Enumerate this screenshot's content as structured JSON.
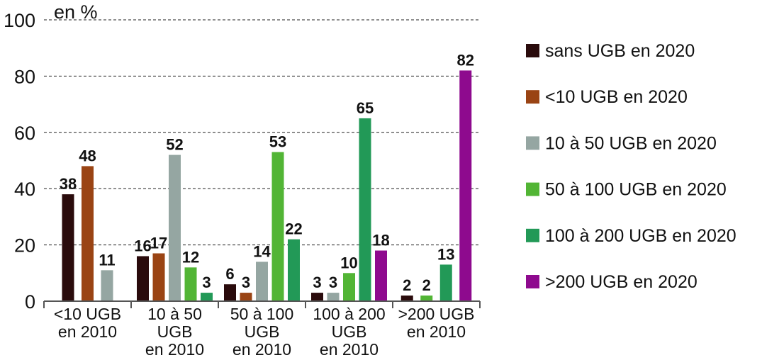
{
  "chart_data": {
    "type": "bar",
    "unit_label": "en %",
    "ylim": [
      0,
      100
    ],
    "yticks": [
      0,
      20,
      40,
      60,
      80,
      100
    ],
    "grid": true,
    "legend_position": "right",
    "categories": [
      [
        "<10 UGB",
        "en 2010"
      ],
      [
        "10 à 50",
        "UGB",
        "en 2010"
      ],
      [
        "50 à 100",
        "UGB",
        "en 2010"
      ],
      [
        "100 à 200",
        "UGB",
        "en 2010"
      ],
      [
        ">200 UGB",
        "en 2010"
      ]
    ],
    "series": [
      {
        "name": "sans UGB en 2020",
        "color": "#2a0b0c",
        "values": [
          38,
          16,
          6,
          3,
          2
        ]
      },
      {
        "name": "<10 UGB en 2020",
        "color": "#9a4414",
        "values": [
          48,
          17,
          3,
          null,
          null
        ]
      },
      {
        "name": "10 à 50 UGB en 2020",
        "color": "#95a6a2",
        "values": [
          11,
          52,
          14,
          3,
          null
        ]
      },
      {
        "name": "50 à 100 UGB en 2020",
        "color": "#52b535",
        "values": [
          null,
          12,
          53,
          10,
          2
        ]
      },
      {
        "name": "100 à 200 UGB en 2020",
        "color": "#229957",
        "values": [
          null,
          3,
          22,
          65,
          13
        ]
      },
      {
        "name": ">200 UGB en 2020",
        "color": "#8e0a8e",
        "values": [
          null,
          null,
          null,
          18,
          82
        ]
      }
    ]
  }
}
